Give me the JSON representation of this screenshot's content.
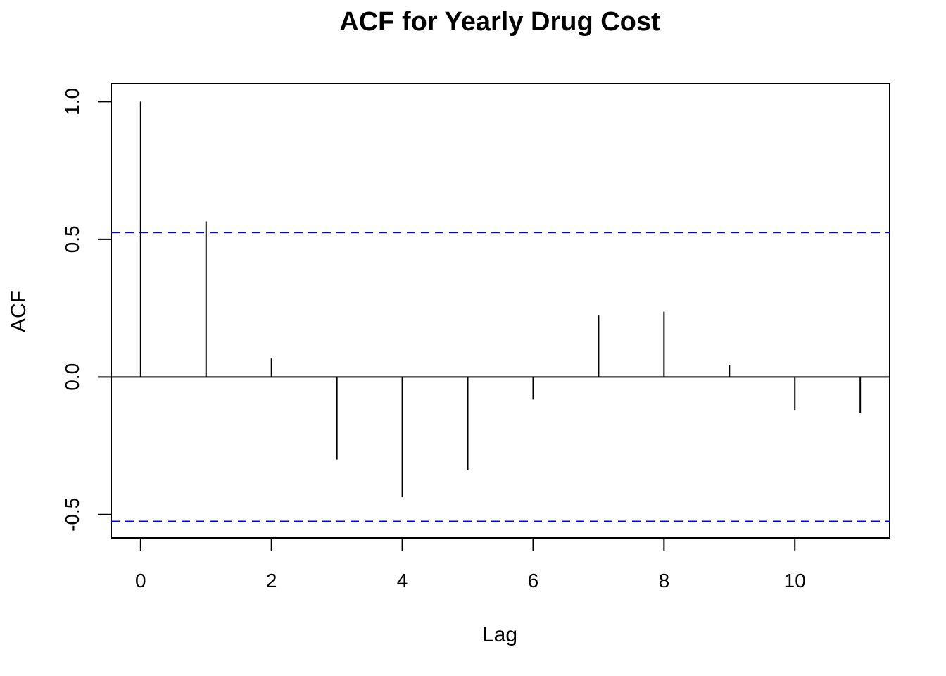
{
  "chart_data": {
    "type": "bar",
    "title": "ACF for Yearly Drug Cost",
    "xlabel": "Lag",
    "ylabel": "ACF",
    "lags": [
      0,
      1,
      2,
      3,
      4,
      5,
      6,
      7,
      8,
      9,
      10,
      11
    ],
    "values": [
      1.0,
      0.565,
      0.067,
      -0.3,
      -0.437,
      -0.337,
      -0.082,
      0.223,
      0.237,
      0.042,
      -0.12,
      -0.13
    ],
    "confidence_bounds": [
      0.525,
      -0.525
    ],
    "confidence_color": "#0000ff",
    "bar_color": "#000000",
    "xlim": [
      -0.45,
      11.45
    ],
    "ylim": [
      -0.585,
      1.065
    ],
    "x_ticks": [
      0,
      2,
      4,
      6,
      8,
      10
    ],
    "x_tick_labels": [
      "0",
      "2",
      "4",
      "6",
      "8",
      "10"
    ],
    "y_ticks": [
      -0.5,
      0.0,
      0.5,
      1.0
    ],
    "y_tick_labels": [
      "-0.5",
      "0.0",
      "0.5",
      "1.0"
    ],
    "grid": false,
    "zero_line": true
  }
}
